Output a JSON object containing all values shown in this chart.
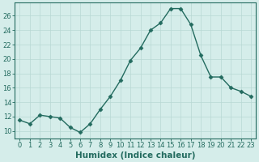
{
  "x": [
    0,
    1,
    2,
    3,
    4,
    5,
    6,
    7,
    8,
    9,
    10,
    11,
    12,
    13,
    14,
    15,
    16,
    17,
    18,
    19,
    20,
    21,
    22,
    23
  ],
  "y": [
    11.5,
    11.0,
    12.2,
    12.0,
    11.8,
    10.5,
    9.8,
    11.0,
    13.0,
    14.8,
    17.0,
    19.8,
    21.5,
    24.0,
    25.0,
    27.0,
    27.0,
    24.8,
    20.5,
    17.5,
    17.5,
    16.0,
    15.5,
    14.8
  ],
  "line_color": "#236b5f",
  "marker": "D",
  "marker_size": 2.5,
  "line_width": 1.0,
  "bg_color": "#d5edea",
  "grid_color": "#b8d8d4",
  "xlabel": "Humidex (Indice chaleur)",
  "xlim": [
    -0.5,
    23.5
  ],
  "ylim": [
    9.0,
    27.8
  ],
  "yticks": [
    10,
    12,
    14,
    16,
    18,
    20,
    22,
    24,
    26
  ],
  "xticks": [
    0,
    1,
    2,
    3,
    4,
    5,
    6,
    7,
    8,
    9,
    10,
    11,
    12,
    13,
    14,
    15,
    16,
    17,
    18,
    19,
    20,
    21,
    22,
    23
  ],
  "tick_fontsize": 6.0,
  "xlabel_fontsize": 7.5,
  "line_style": "-",
  "spine_color": "#236b5f",
  "grid_linewidth": 0.5
}
